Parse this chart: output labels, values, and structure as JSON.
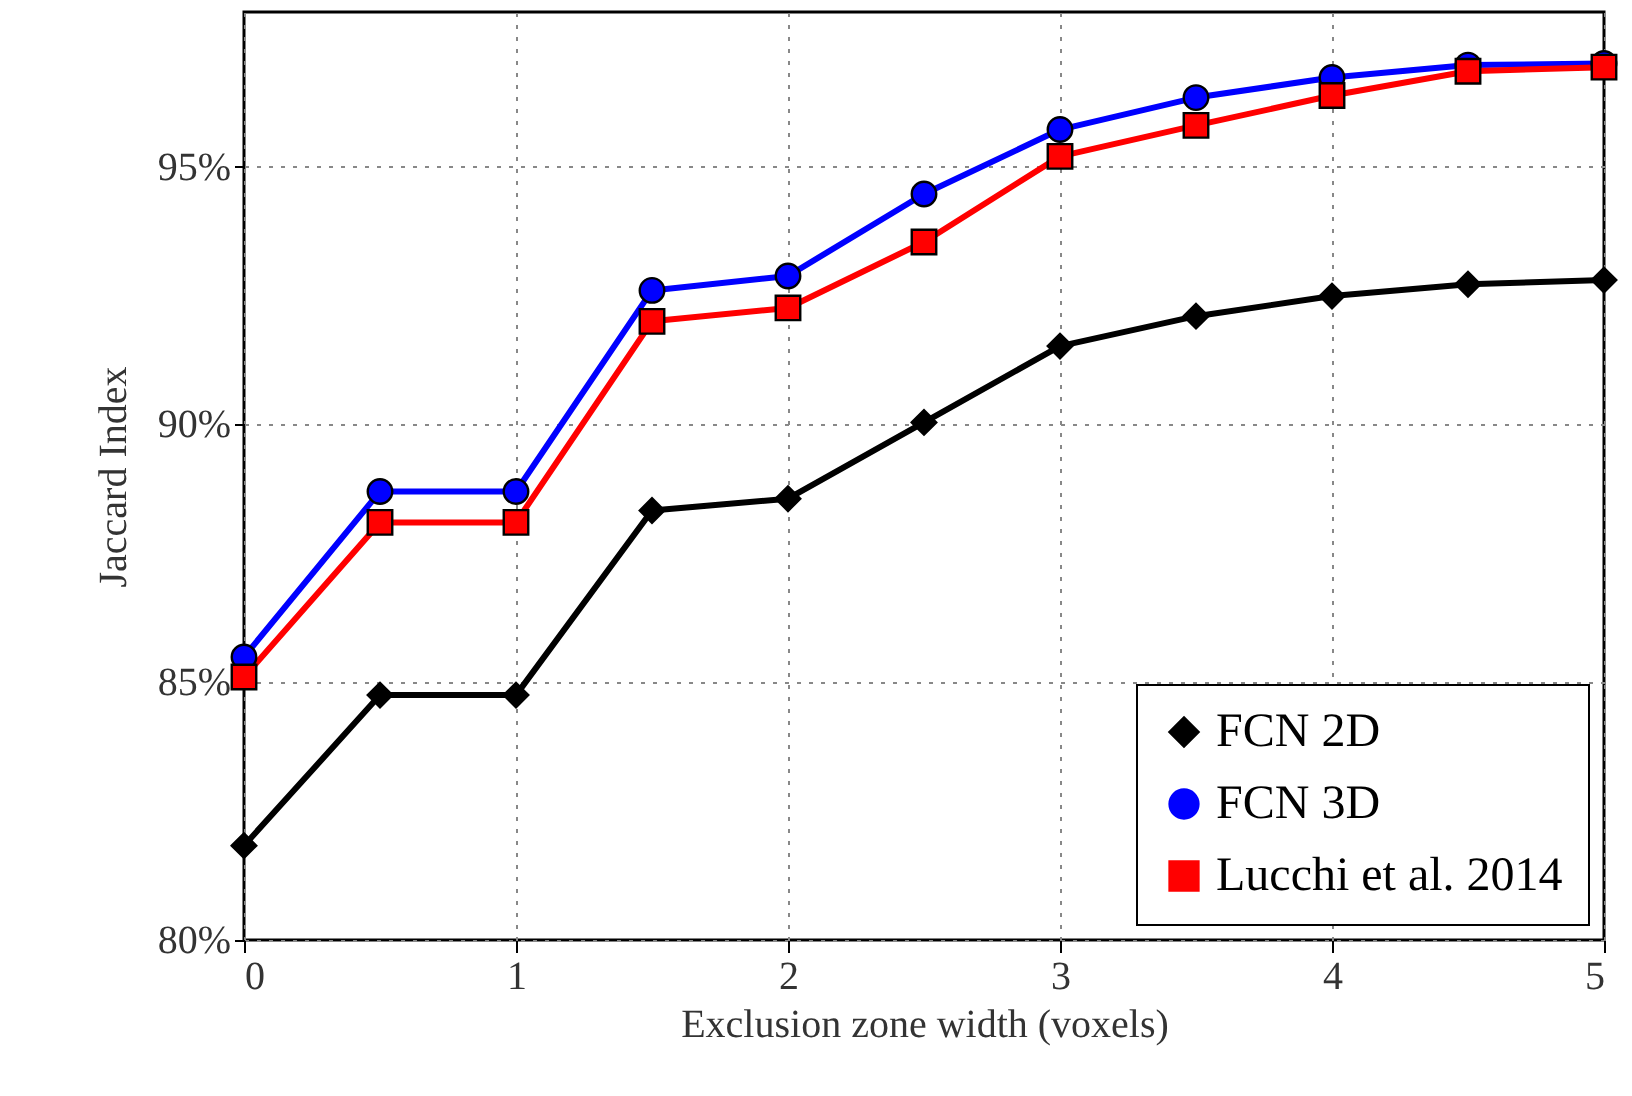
{
  "chart_data": {
    "type": "line",
    "xlabel": "Exclusion zone width (voxels)",
    "ylabel": "Jaccard Index",
    "x": [
      0,
      0.5,
      1,
      1.5,
      2,
      2.5,
      3,
      3.5,
      4,
      4.5,
      5
    ],
    "series": [
      {
        "name": "FCN 2D",
        "color": "#000000",
        "marker": "diamond",
        "values": [
          81.83,
          84.75,
          84.75,
          88.33,
          88.56,
          90.04,
          91.52,
          92.1,
          92.49,
          92.72,
          92.8
        ]
      },
      {
        "name": "FCN 3D",
        "color": "#0000ff",
        "marker": "circle",
        "values": [
          85.49,
          88.7,
          88.7,
          92.6,
          92.88,
          94.47,
          95.72,
          96.34,
          96.73,
          96.97,
          97.0
        ]
      },
      {
        "name": "Lucchi et al. 2014",
        "color": "#ff0000",
        "marker": "square",
        "values": [
          85.1,
          88.1,
          88.1,
          92.0,
          92.26,
          93.54,
          95.2,
          95.8,
          96.38,
          96.85,
          96.93
        ]
      }
    ],
    "xlim": [
      0,
      5
    ],
    "xticks": [
      0,
      1,
      2,
      3,
      4,
      5
    ],
    "ylim": [
      80,
      98
    ],
    "yticks": [
      {
        "value": 80,
        "label": "80%"
      },
      {
        "value": 85,
        "label": "85%"
      },
      {
        "value": 90,
        "label": "90%"
      },
      {
        "value": 95,
        "label": "95%"
      }
    ],
    "grid": true,
    "legend": "bottom right",
    "line_style": "solid"
  }
}
